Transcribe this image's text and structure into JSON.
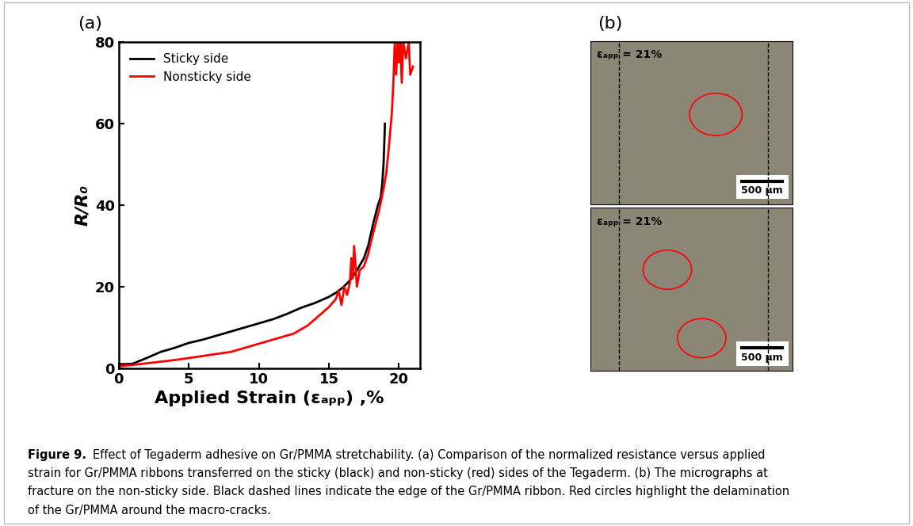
{
  "chart_data": {
    "type": "line",
    "x_label": "Applied Strain (εₐₚₚ) ,%",
    "y_label": "R/R₀",
    "xlim": [
      0,
      21.5
    ],
    "xticks": [
      0,
      5,
      10,
      15,
      20
    ],
    "ylim": [
      0,
      80
    ],
    "yticks": [
      0,
      20,
      40,
      60,
      80
    ],
    "legend": "upper left",
    "series": [
      {
        "name": "Sticky side",
        "color": "#000000",
        "x": [
          0,
          0.5,
          1,
          1.5,
          2,
          3,
          4,
          5,
          6,
          7,
          8,
          9,
          10,
          11,
          12,
          13,
          14,
          15,
          15.5,
          16,
          16.5,
          17,
          17.5,
          17.8,
          18,
          18.2,
          18.5,
          18.7,
          18.8,
          18.9,
          19.0
        ],
        "values": [
          1,
          1,
          1.1,
          1.8,
          2.5,
          4,
          5,
          6.2,
          7,
          8,
          9,
          10,
          11,
          12,
          13.3,
          14.8,
          16,
          17.5,
          18.5,
          19.8,
          21.5,
          24,
          27,
          30,
          33,
          36,
          40,
          42,
          45,
          50,
          60
        ]
      },
      {
        "name": "Nonsticky side",
        "color": "#ff0000",
        "x": [
          0,
          1,
          2,
          3,
          4,
          5,
          6,
          7,
          8,
          9,
          10,
          11,
          12,
          12.5,
          13,
          13.5,
          14,
          14.5,
          15,
          15.5,
          15.7,
          15.9,
          16.1,
          16.3,
          16.5,
          16.6,
          16.7,
          16.8,
          17,
          17.2,
          17.5,
          17.8,
          18,
          18.3,
          18.6,
          18.9,
          19.1,
          19.3,
          19.5,
          19.6,
          19.7,
          19.8,
          19.9,
          20,
          20.1,
          20.2,
          20.3,
          20.5,
          20.7,
          20.8,
          21
        ],
        "values": [
          0.5,
          0.8,
          1.2,
          1.6,
          2,
          2.5,
          3,
          3.5,
          4,
          5,
          6,
          7,
          8,
          8.5,
          9.5,
          10.5,
          12,
          13.5,
          15,
          17,
          19,
          15.5,
          20,
          18,
          21,
          27,
          22,
          30,
          20,
          24,
          25,
          28,
          31,
          35,
          39,
          44,
          48,
          55,
          63,
          70,
          80,
          72,
          80,
          75,
          80,
          70,
          80,
          76,
          80,
          72,
          74
        ]
      }
    ]
  },
  "figure": {
    "panel_labels": [
      "(a)",
      "(b)"
    ],
    "micrographs": [
      {
        "strain_label": "εₐₚₚ = 21%",
        "scale_bar": "500 µm"
      },
      {
        "strain_label": "εₐₚₚ = 21%",
        "scale_bar": "500 µm"
      }
    ],
    "caption": {
      "label": "Figure 9.",
      "lines": [
        "Effect of Tegaderm adhesive on Gr/PMMA stretchability. (a) Comparison of the normalized resistance versus applied",
        "strain for Gr/PMMA ribbons transferred on the sticky (black) and non-sticky (red) sides of the Tegaderm. (b) The micrographs at",
        "fracture on the non-sticky side. Black dashed lines indicate the edge of the Gr/PMMA ribbon. Red circles highlight the delamination",
        "of the Gr/PMMA around the macro-cracks."
      ]
    }
  }
}
